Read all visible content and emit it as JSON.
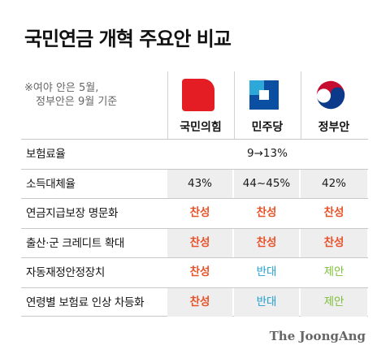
{
  "title": "국민연금 개혁 주요안 비교",
  "note": {
    "line1": "※여야 안은 5월,",
    "line2": "정부안은 9월 기준"
  },
  "parties": [
    {
      "name": "국민의힘",
      "logo": "ppp-logo-icon",
      "color": "#e41c24"
    },
    {
      "name": "민주당",
      "logo": "dp-logo-icon",
      "color": "#0b4fa3"
    },
    {
      "name": "정부안",
      "logo": "gov-taegeuk-icon",
      "color": "#c60c30"
    }
  ],
  "rows": [
    {
      "label": "보험료율",
      "merged": "9→13%"
    },
    {
      "label": "소득대체율",
      "values": [
        "43%",
        "44~45%",
        "42%"
      ]
    },
    {
      "label": "연금지급보장 명문화",
      "values": [
        "찬성",
        "찬성",
        "찬성"
      ]
    },
    {
      "label": "출산·군 크레디트 확대",
      "values": [
        "찬성",
        "찬성",
        "찬성"
      ]
    },
    {
      "label": "자동재정안정장치",
      "values": [
        "찬성",
        "반대",
        "제안"
      ]
    },
    {
      "label": "연령별 보험료 인상 차등화",
      "values": [
        "찬성",
        "반대",
        "제안"
      ]
    }
  ],
  "colors": {
    "support": "#e8532a",
    "oppose": "#1f9fd0",
    "propose": "#7dbf3a"
  },
  "credit": "The JoongAng"
}
